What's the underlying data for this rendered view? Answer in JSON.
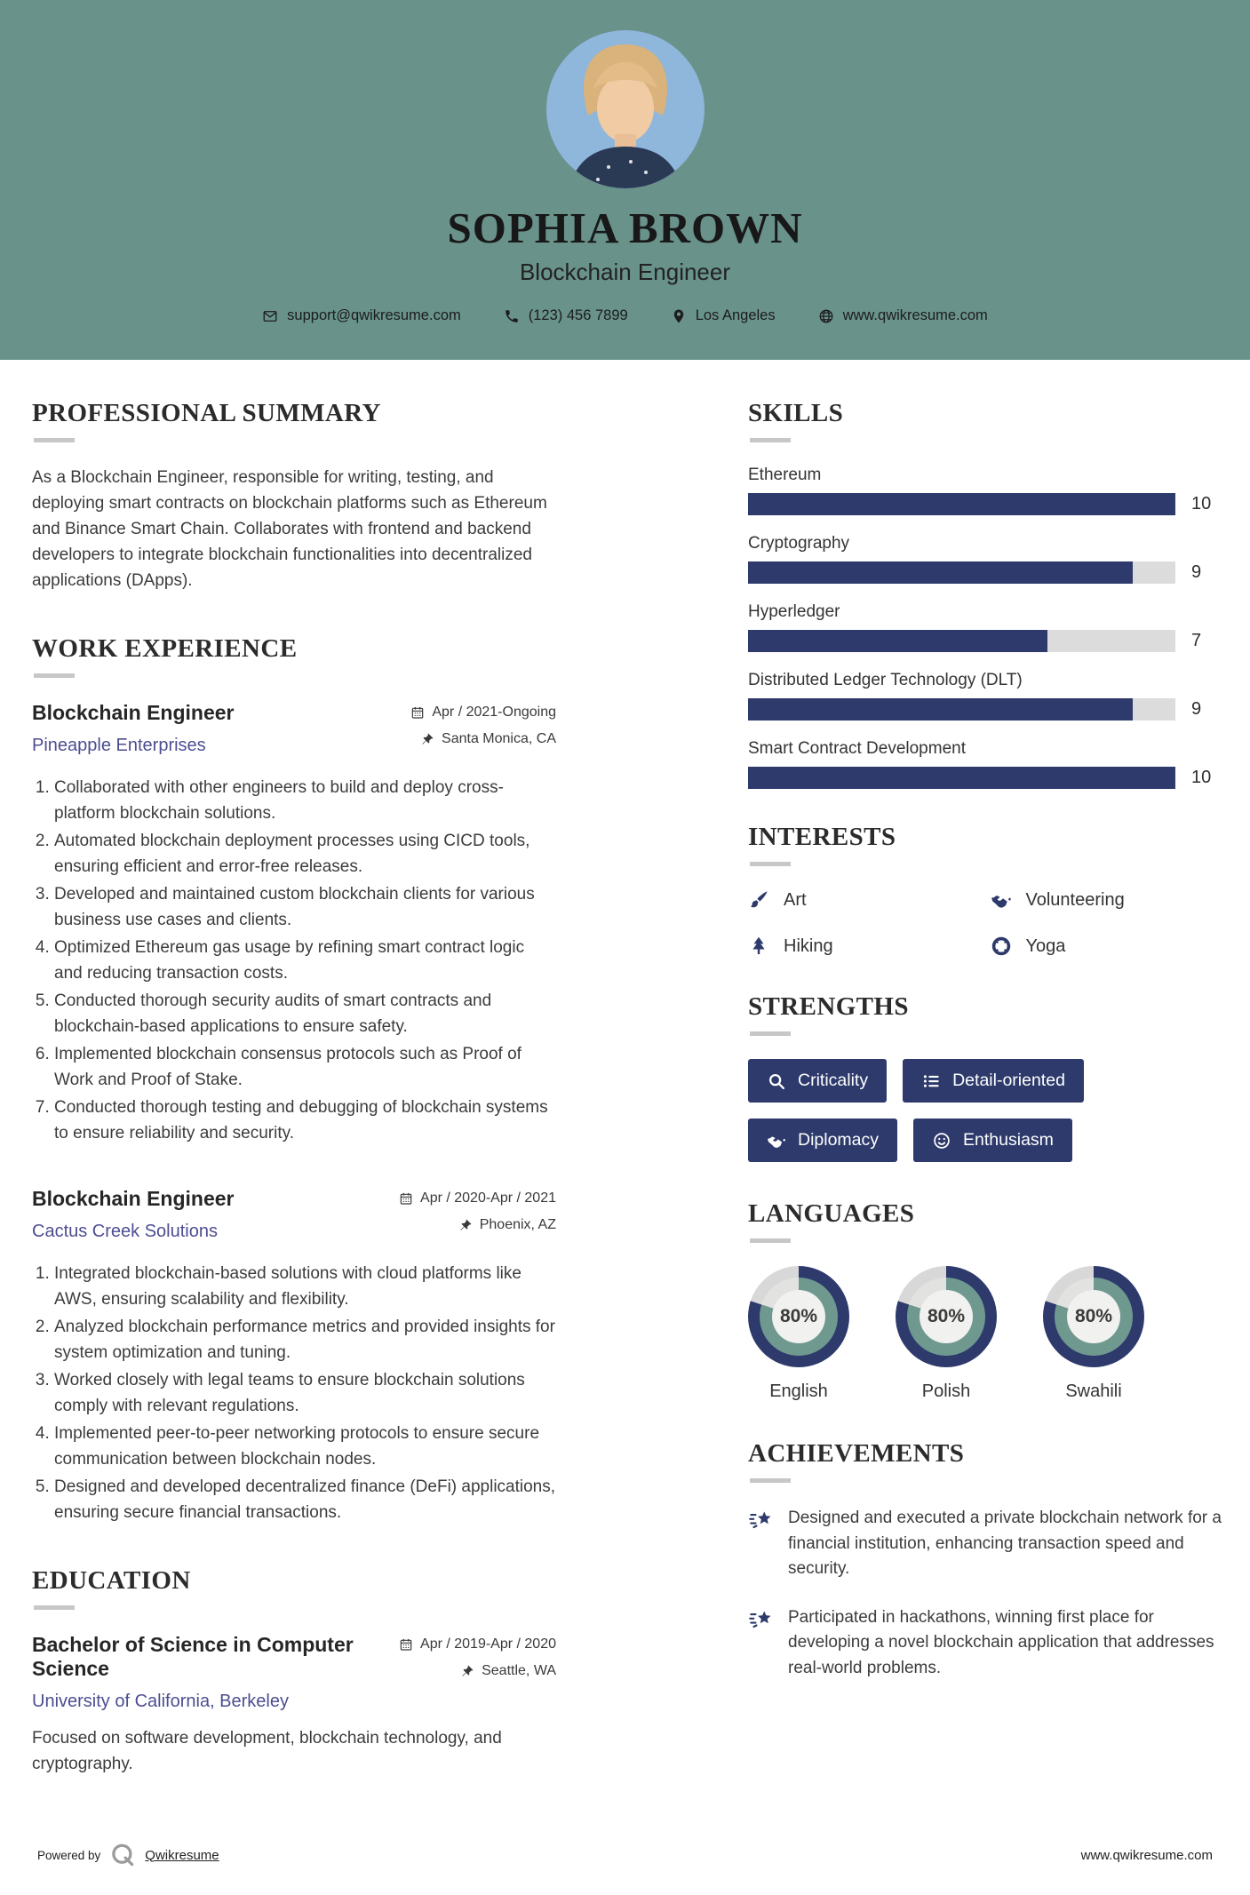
{
  "header": {
    "name": "SOPHIA BROWN",
    "title": "Blockchain Engineer",
    "contact": {
      "email": "support@qwikresume.com",
      "phone": "(123) 456 7899",
      "location": "Los Angeles",
      "website": "www.qwikresume.com"
    }
  },
  "summary": {
    "heading": "PROFESSIONAL SUMMARY",
    "text": "As a Blockchain Engineer, responsible for writing, testing, and deploying smart contracts on blockchain platforms such as Ethereum and Binance Smart Chain. Collaborates with frontend and backend developers to integrate blockchain functionalities into decentralized applications (DApps)."
  },
  "work": {
    "heading": "WORK EXPERIENCE",
    "jobs": [
      {
        "title": "Blockchain Engineer",
        "company": "Pineapple Enterprises",
        "dates": "Apr / 2021-Ongoing",
        "location": "Santa Monica, CA",
        "bullets": [
          "Collaborated with other engineers to build and deploy cross-platform blockchain solutions.",
          "Automated blockchain deployment processes using CICD tools, ensuring efficient and error-free releases.",
          "Developed and maintained custom blockchain clients for various business use cases and clients.",
          "Optimized Ethereum gas usage by refining smart contract logic and reducing transaction costs.",
          "Conducted thorough security audits of smart contracts and blockchain-based applications to ensure safety.",
          "Implemented blockchain consensus protocols such as Proof of Work and Proof of Stake.",
          "Conducted thorough testing and debugging of blockchain systems to ensure reliability and security."
        ]
      },
      {
        "title": "Blockchain Engineer",
        "company": "Cactus Creek Solutions",
        "dates": "Apr / 2020-Apr / 2021",
        "location": "Phoenix, AZ",
        "bullets": [
          "Integrated blockchain-based solutions with cloud platforms like AWS, ensuring scalability and flexibility.",
          "Analyzed blockchain performance metrics and provided insights for system optimization and tuning.",
          "Worked closely with legal teams to ensure blockchain solutions comply with relevant regulations.",
          "Implemented peer-to-peer networking protocols to ensure secure communication between blockchain nodes.",
          "Designed and developed decentralized finance (DeFi) applications, ensuring secure financial transactions."
        ]
      }
    ]
  },
  "education": {
    "heading": "EDUCATION",
    "degree": "Bachelor of Science in Computer Science",
    "school": "University of California, Berkeley",
    "dates": "Apr / 2019-Apr / 2020",
    "location": "Seattle, WA",
    "description": "Focused on software development, blockchain technology, and cryptography."
  },
  "skills": {
    "heading": "SKILLS",
    "max": 10,
    "items": [
      {
        "name": "Ethereum",
        "score": 10
      },
      {
        "name": "Cryptography",
        "score": 9
      },
      {
        "name": "Hyperledger",
        "score": 7
      },
      {
        "name": "Distributed Ledger Technology (DLT)",
        "score": 9
      },
      {
        "name": "Smart Contract Development",
        "score": 10
      }
    ]
  },
  "interests": {
    "heading": "INTERESTS",
    "items": [
      {
        "label": "Art",
        "icon": "paintbrush"
      },
      {
        "label": "Volunteering",
        "icon": "handshake"
      },
      {
        "label": "Hiking",
        "icon": "tree"
      },
      {
        "label": "Yoga",
        "icon": "lifebuoy"
      }
    ]
  },
  "strengths": {
    "heading": "STRENGTHS",
    "items": [
      {
        "label": "Criticality",
        "icon": "search"
      },
      {
        "label": "Detail-oriented",
        "icon": "list"
      },
      {
        "label": "Diplomacy",
        "icon": "handshake"
      },
      {
        "label": "Enthusiasm",
        "icon": "smiley"
      }
    ]
  },
  "languages": {
    "heading": "LANGUAGES",
    "items": [
      {
        "label": "English",
        "percent": 80
      },
      {
        "label": "Polish",
        "percent": 80
      },
      {
        "label": "Swahili",
        "percent": 80
      }
    ]
  },
  "achievements": {
    "heading": "ACHIEVEMENTS",
    "items": [
      "Designed and executed a private blockchain network for a financial institution, enhancing transaction speed and security.",
      "Participated in hackathons, winning first place for developing a novel blockchain application that addresses real-world problems."
    ]
  },
  "footer": {
    "powered_by": "Powered by",
    "brand": "Qwikresume",
    "site": "www.qwikresume.com"
  },
  "colors": {
    "header_teal": "#69928B",
    "accent_navy": "#2D3A6B",
    "link_indigo": "#4D4D92",
    "bar_track_gray": "#DCDCDC",
    "donut_teal": "#6F998F",
    "donut_gap_gray": "#D8D8D8",
    "donut_center": "#F1F1EF"
  }
}
